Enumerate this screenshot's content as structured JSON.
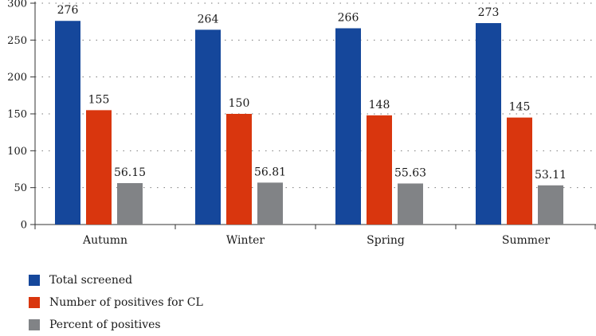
{
  "chart_data": {
    "type": "bar",
    "categories": [
      "Autumn",
      "Winter",
      "Spring",
      "Summer"
    ],
    "series": [
      {
        "name": "Total screened",
        "values": [
          276,
          264,
          266,
          273
        ],
        "labels": [
          "276",
          "264",
          "266",
          "273"
        ],
        "color": "#15479b"
      },
      {
        "name": "Number of positives for CL",
        "values": [
          155,
          150,
          148,
          145
        ],
        "labels": [
          "155",
          "150",
          "148",
          "145"
        ],
        "color": "#d9360e"
      },
      {
        "name": "Percent of positives",
        "values": [
          56.15,
          56.81,
          55.63,
          53.11
        ],
        "labels": [
          "56.15",
          "56.81",
          "55.63",
          "53.11"
        ],
        "color": "#818386"
      }
    ],
    "yticks": [
      "0",
      "50",
      "100",
      "150",
      "200",
      "250",
      "300"
    ],
    "ylim": [
      0,
      300
    ],
    "grid": "dotted horizontal",
    "legend_position": "bottom-left",
    "title": "",
    "xlabel": "",
    "ylabel": ""
  }
}
